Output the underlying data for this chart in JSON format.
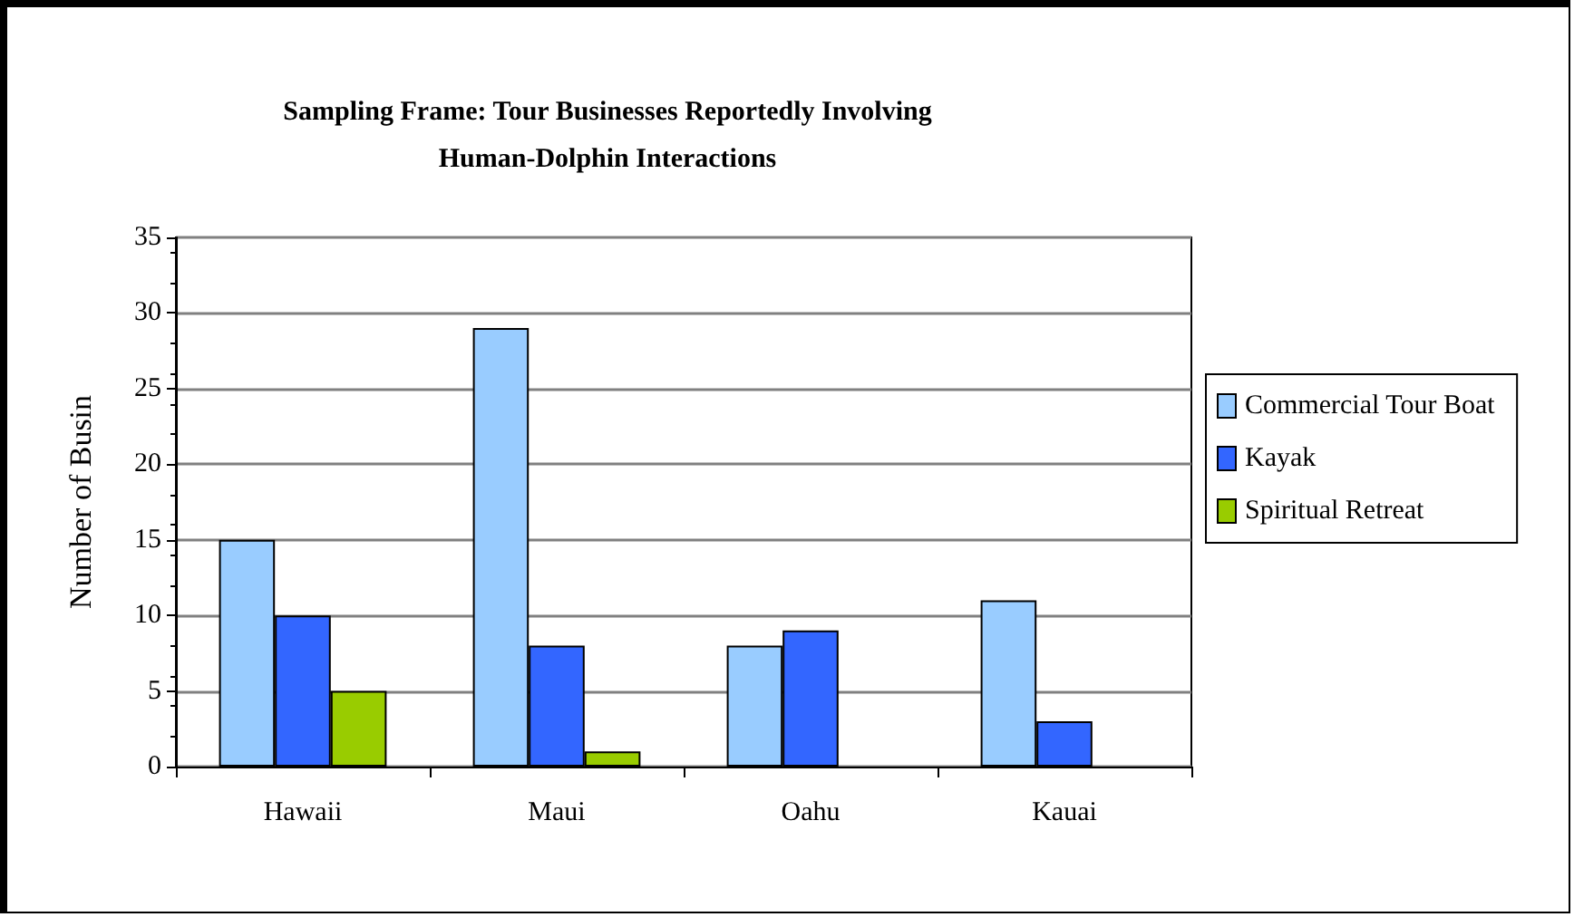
{
  "chart_data": {
    "type": "bar",
    "title": "Sampling Frame: Tour Businesses Reportedly Involving\nHuman-Dolphin Interactions",
    "ylabel": "Number of Busin",
    "categories": [
      "Hawaii",
      "Maui",
      "Oahu",
      "Kauai"
    ],
    "series": [
      {
        "name": "Commercial Tour Boat",
        "color": "#99ccff",
        "values": [
          15,
          29,
          8,
          11
        ]
      },
      {
        "name": "Kayak",
        "color": "#3366ff",
        "values": [
          10,
          8,
          9,
          3
        ]
      },
      {
        "name": "Spiritual Retreat",
        "color": "#99cc00",
        "values": [
          5,
          1,
          null,
          null
        ]
      }
    ],
    "ylim": [
      0,
      35
    ],
    "yticks": [
      0,
      5,
      10,
      15,
      20,
      25,
      30,
      35
    ],
    "grid": "y",
    "legend": "right"
  }
}
